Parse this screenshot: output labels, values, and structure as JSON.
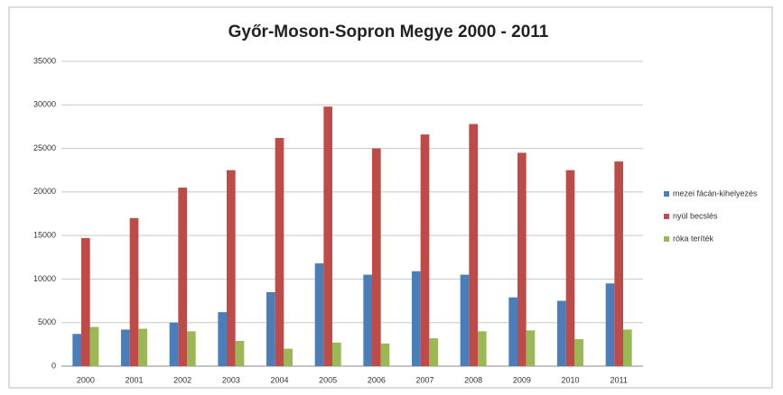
{
  "chart_data": {
    "type": "bar",
    "title": "Győr-Moson-Sopron Megye 2000 - 2011",
    "categories": [
      "2000",
      "2001",
      "2002",
      "2003",
      "2004",
      "2005",
      "2006",
      "2007",
      "2008",
      "2009",
      "2010",
      "2011"
    ],
    "series": [
      {
        "name": "mezei fácán-kihelyezés",
        "color": "#4a7ebb",
        "values": [
          3700,
          4200,
          5000,
          6200,
          8500,
          11800,
          10500,
          10900,
          10500,
          7900,
          7500,
          9500
        ]
      },
      {
        "name": "nyúl becslés",
        "color": "#be4b48",
        "values": [
          14700,
          17000,
          20500,
          22500,
          26200,
          29800,
          25000,
          26600,
          27800,
          24500,
          22500,
          23500
        ]
      },
      {
        "name": "róka teríték",
        "color": "#98b954",
        "values": [
          4500,
          4300,
          4000,
          2900,
          2000,
          2700,
          2600,
          3200,
          4000,
          4100,
          3100,
          4200
        ]
      }
    ],
    "ylim": [
      0,
      35000
    ],
    "yticks": [
      0,
      5000,
      10000,
      15000,
      20000,
      25000,
      30000,
      35000
    ],
    "grid": true,
    "legend": "right"
  }
}
